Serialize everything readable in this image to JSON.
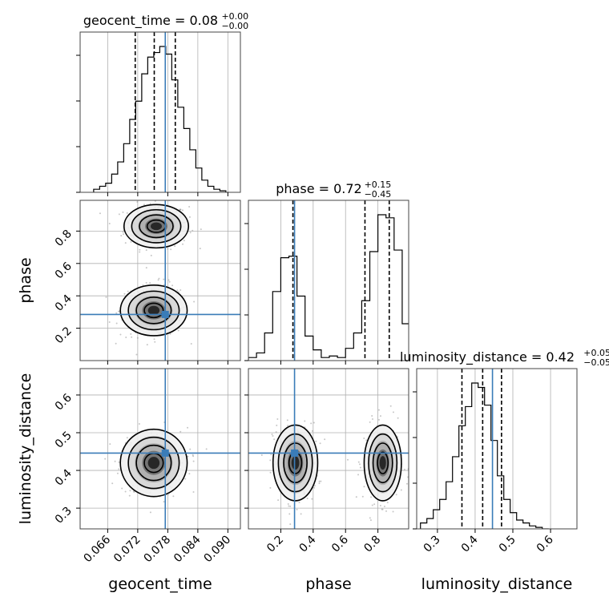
{
  "chart_data": {
    "type": "corner",
    "parameters": [
      "geocent_time",
      "phase",
      "luminosity_distance"
    ],
    "axis_labels": {
      "x": [
        "geocent_time",
        "phase",
        "luminosity_distance"
      ],
      "y": [
        "phase",
        "luminosity_distance"
      ]
    },
    "ranges": {
      "geocent_time": [
        0.0605,
        0.0925
      ],
      "phase": [
        0.0,
        0.99
      ],
      "luminosity_distance": [
        0.245,
        0.67
      ]
    },
    "ticks": {
      "geocent_time": [
        "0.066",
        "0.072",
        "0.078",
        "0.084",
        "0.090"
      ],
      "phase_x": [
        "0.2",
        "0.4",
        "0.6",
        "0.8"
      ],
      "phase_y": [
        "0.2",
        "0.4",
        "0.6",
        "0.8"
      ],
      "luminosity_distance_x": [
        "0.3",
        "0.4",
        "0.5",
        "0.6"
      ],
      "luminosity_distance_y": [
        "0.3",
        "0.4",
        "0.5",
        "0.6"
      ]
    },
    "titles": [
      {
        "param": "geocent_time",
        "label": "geocent_time = 0.08",
        "sup": "+0.00",
        "sub": "−0.00"
      },
      {
        "param": "phase",
        "label": "phase = 0.72",
        "sup": "+0.15",
        "sub": "−0.45"
      },
      {
        "param": "luminosity_distance",
        "label": "luminosity_distance = 0.42",
        "sup": "+0.05",
        "sub": "−0.05"
      }
    ],
    "truths": {
      "geocent_time": 0.0775,
      "phase": 0.285,
      "luminosity_distance": 0.446
    },
    "quantiles": {
      "geocent_time": [
        0.0715,
        0.0753,
        0.0795
      ],
      "phase": [
        0.275,
        0.72,
        0.87
      ],
      "luminosity_distance": [
        0.365,
        0.42,
        0.47
      ]
    },
    "histograms": {
      "geocent_time": {
        "edges_start": 0.0632,
        "bin_width": 0.0012,
        "counts": [
          0.02,
          0.04,
          0.06,
          0.12,
          0.2,
          0.32,
          0.48,
          0.6,
          0.78,
          0.89,
          0.92,
          0.96,
          0.91,
          0.74,
          0.56,
          0.42,
          0.28,
          0.16,
          0.08,
          0.04,
          0.02,
          0.01
        ]
      },
      "phase": {
        "edges_start": 0.0,
        "bin_width": 0.05,
        "counts": [
          0.02,
          0.05,
          0.18,
          0.45,
          0.67,
          0.68,
          0.42,
          0.16,
          0.07,
          0.02,
          0.03,
          0.02,
          0.08,
          0.18,
          0.39,
          0.71,
          0.95,
          0.93,
          0.72,
          0.24
        ]
      },
      "luminosity_distance": {
        "edges_start": 0.255,
        "bin_width": 0.017,
        "counts": [
          0.04,
          0.07,
          0.13,
          0.2,
          0.32,
          0.49,
          0.7,
          0.83,
          0.99,
          0.96,
          0.84,
          0.6,
          0.36,
          0.2,
          0.11,
          0.06,
          0.04,
          0.02,
          0.01,
          0.0
        ]
      }
    },
    "blobs": {
      "phase_vs_geocent_time": [
        {
          "cx": 0.0757,
          "cy": 0.83,
          "sx": 0.0028,
          "sy": 0.06
        },
        {
          "cx": 0.0752,
          "cy": 0.31,
          "sx": 0.0029,
          "sy": 0.07
        }
      ],
      "luminosity_distance_vs_geocent_time": [
        {
          "cx": 0.0752,
          "cy": 0.42,
          "sx": 0.0029,
          "sy": 0.04
        }
      ],
      "luminosity_distance_vs_phase": [
        {
          "cx": 0.29,
          "cy": 0.42,
          "sx": 0.06,
          "sy": 0.045
        },
        {
          "cx": 0.83,
          "cy": 0.42,
          "sx": 0.05,
          "sy": 0.045
        }
      ]
    },
    "grid": true,
    "colors": {
      "truth": "#3a7cb8",
      "hist": "#000000",
      "quantile": "#000000",
      "grid": "#b0b0b0",
      "scatter": "#999999"
    }
  }
}
